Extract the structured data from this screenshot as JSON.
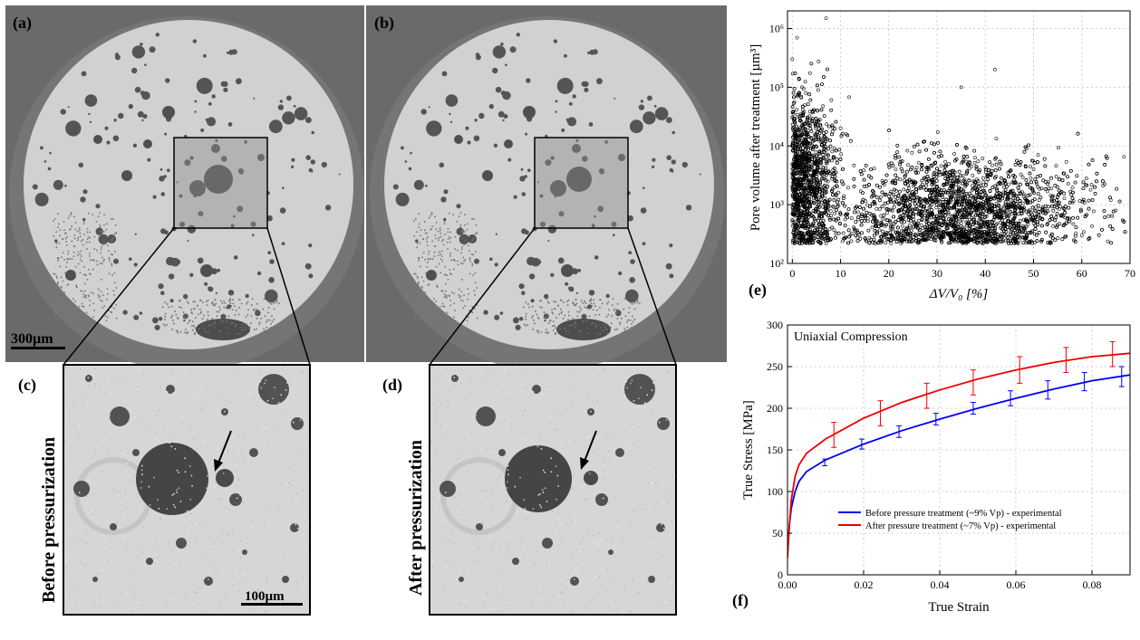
{
  "panels": {
    "a": "(a)",
    "b": "(b)",
    "c": "(c)",
    "d": "(d)",
    "e": "(e)",
    "f": "(f)"
  },
  "labels": {
    "before": "Before pressurization",
    "after": "After pressurization",
    "scalebar_large": "300µm",
    "scalebar_small": "100µm"
  },
  "chart_data": [
    {
      "type": "scatter",
      "xlabel": "ΔV/V₀ [%]",
      "ylabel": "Pore volume after treatment [µm³]",
      "xlim": [
        -1,
        70
      ],
      "ylim": [
        100,
        2000000
      ],
      "yscale": "log",
      "x_ticks": [
        "0",
        "10",
        "20",
        "30",
        "40",
        "50",
        "60",
        "70"
      ],
      "x_tick_values": [
        0,
        10,
        20,
        30,
        40,
        50,
        60,
        70
      ],
      "y_ticks": [
        "10²",
        "10³",
        "10⁴",
        "10⁵",
        "10⁶"
      ],
      "y_tick_values": [
        100,
        1000,
        10000,
        100000,
        1000000
      ],
      "grid": true,
      "marker": "open-circle",
      "approx_point_count": 6000,
      "sample_points": [
        {
          "x": 0,
          "y": 300000
        },
        {
          "x": 1,
          "y": 700000
        },
        {
          "x": 7,
          "y": 1500000
        },
        {
          "x": 2,
          "y": 100000
        },
        {
          "x": 35,
          "y": 100000
        },
        {
          "x": 42,
          "y": 200000
        },
        {
          "x": 30,
          "y": 1000
        },
        {
          "x": 40,
          "y": 500
        },
        {
          "x": 66,
          "y": 1200
        },
        {
          "x": 10,
          "y": 20000
        },
        {
          "x": 60,
          "y": 300
        }
      ],
      "density_clusters": [
        {
          "x_center": 2,
          "x_spread": 4,
          "logy_center": 3.4,
          "logy_spread": 0.7
        },
        {
          "x_center": 35,
          "x_spread": 12,
          "logy_center": 2.9,
          "logy_spread": 0.45
        }
      ]
    },
    {
      "type": "line",
      "title": "Uniaxial Compression",
      "xlabel": "True Strain",
      "ylabel": "True Stress [MPa]",
      "xlim": [
        0,
        0.09
      ],
      "ylim": [
        0,
        300
      ],
      "x_ticks": [
        "0.00",
        "0.02",
        "0.04",
        "0.06",
        "0.08"
      ],
      "x_tick_values": [
        0,
        0.02,
        0.04,
        0.06,
        0.08
      ],
      "y_ticks": [
        "0",
        "50",
        "100",
        "150",
        "200",
        "250",
        "300"
      ],
      "y_tick_values": [
        0,
        50,
        100,
        150,
        200,
        250,
        300
      ],
      "grid": true,
      "legend": "lower-right",
      "series": [
        {
          "name": "Before pressure treatment (~9% Vp) - experimental",
          "color": "#0000ee",
          "x": [
            0,
            0.0005,
            0.001,
            0.002,
            0.003,
            0.005,
            0.01,
            0.02,
            0.03,
            0.04,
            0.05,
            0.06,
            0.07,
            0.08,
            0.09
          ],
          "values": [
            25,
            60,
            80,
            100,
            112,
            124,
            138,
            157,
            173,
            187,
            200,
            212,
            223,
            233,
            240
          ],
          "error_x": [
            0.0098,
            0.0195,
            0.0293,
            0.039,
            0.0488,
            0.0586,
            0.0684,
            0.078,
            0.0878
          ],
          "error_values": [
            135,
            157,
            172,
            187,
            200,
            212,
            222,
            232,
            238
          ],
          "error_bars": [
            4,
            6,
            7,
            7,
            7,
            9,
            11,
            11,
            12
          ]
        },
        {
          "name": "After pressure treatment (~7% Vp) - experimental",
          "color": "#ee0000",
          "x": [
            0,
            0.0005,
            0.001,
            0.002,
            0.003,
            0.005,
            0.01,
            0.02,
            0.03,
            0.04,
            0.05,
            0.06,
            0.07,
            0.08,
            0.09
          ],
          "values": [
            20,
            60,
            90,
            118,
            132,
            146,
            163,
            188,
            207,
            222,
            235,
            246,
            255,
            262,
            266
          ],
          "error_x": [
            0.0122,
            0.0244,
            0.0366,
            0.0488,
            0.061,
            0.0732,
            0.0854
          ],
          "error_values": [
            168,
            194,
            215,
            231,
            246,
            258,
            265
          ],
          "error_bars": [
            15,
            15,
            15,
            15,
            16,
            15,
            15
          ]
        }
      ]
    }
  ]
}
